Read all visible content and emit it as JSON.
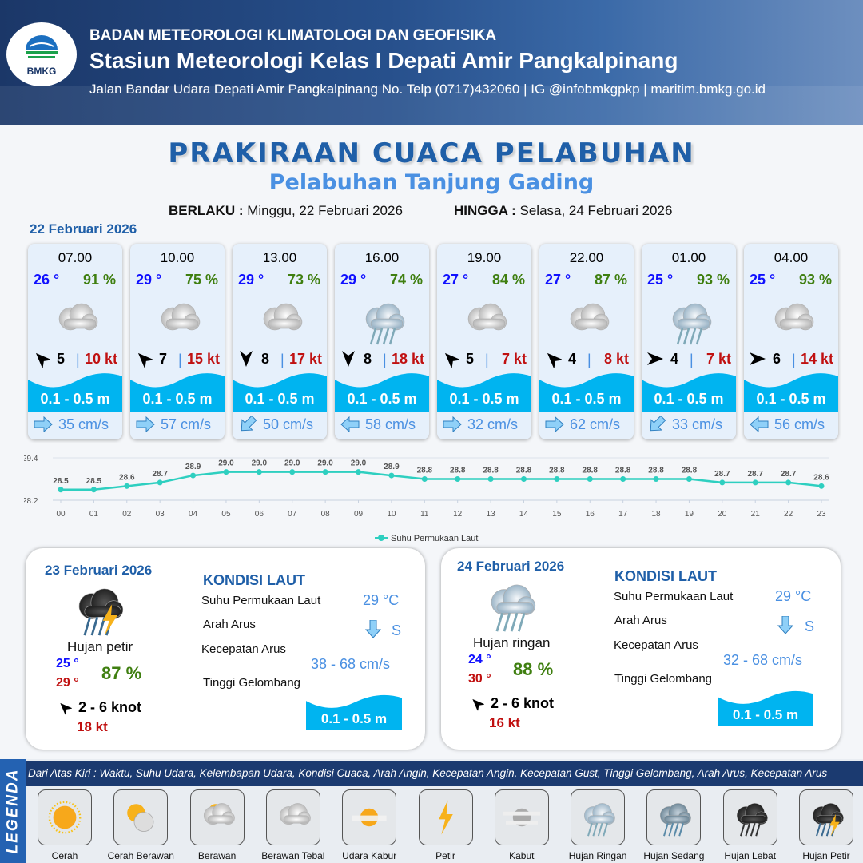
{
  "header": {
    "logo_text": "BMKG",
    "agency": "BADAN METEOROLOGI KLIMATOLOGI DAN GEOFISIKA",
    "station": "Stasiun Meteorologi Kelas I Depati Amir Pangkalpinang",
    "contact": "Jalan Bandar Udara Depati Amir Pangkalpinang No. Telp (0717)432060 | IG @infobmkgpkp | maritim.bmkg.go.id"
  },
  "title": "PRAKIRAAN CUACA PELABUHAN",
  "subtitle": "Pelabuhan Tanjung Gading",
  "validity": {
    "from_label": "BERLAKU :",
    "from_value": "Minggu, 22 Februari 2026",
    "to_label": "HINGGA :",
    "to_value": "Selasa, 24 Februari 2026"
  },
  "day1": {
    "date": "22 Februari 2026",
    "forecasts": [
      {
        "time": "07.00",
        "temp": "26 °",
        "rh": "91 %",
        "weather": "Berawan Tebal",
        "wind_dir": "NW",
        "wind_speed": "5",
        "gust": "10 kt",
        "wave": "0.1 - 0.5 m",
        "current_dir": "E",
        "current_speed": "35 cm/s"
      },
      {
        "time": "10.00",
        "temp": "29 °",
        "rh": "75 %",
        "weather": "Berawan Tebal",
        "wind_dir": "NW",
        "wind_speed": "7",
        "gust": "15 kt",
        "wave": "0.1 - 0.5 m",
        "current_dir": "E",
        "current_speed": "57 cm/s"
      },
      {
        "time": "13.00",
        "temp": "29 °",
        "rh": "73 %",
        "weather": "Berawan Tebal",
        "wind_dir": "S",
        "wind_speed": "8",
        "gust": "17 kt",
        "wave": "0.1 - 0.5 m",
        "current_dir": "SW",
        "current_speed": "50 cm/s"
      },
      {
        "time": "16.00",
        "temp": "29 °",
        "rh": "74 %",
        "weather": "Hujan Ringan",
        "wind_dir": "S",
        "wind_speed": "8",
        "gust": "18 kt",
        "wave": "0.1 - 0.5 m",
        "current_dir": "W",
        "current_speed": "58 cm/s"
      },
      {
        "time": "19.00",
        "temp": "27 °",
        "rh": "84 %",
        "weather": "Berawan Tebal",
        "wind_dir": "NW",
        "wind_speed": "5",
        "gust": "7 kt",
        "wave": "0.1 - 0.5 m",
        "current_dir": "E",
        "current_speed": "32 cm/s"
      },
      {
        "time": "22.00",
        "temp": "27 °",
        "rh": "87 %",
        "weather": "Berawan Tebal",
        "wind_dir": "NW",
        "wind_speed": "4",
        "gust": "8 kt",
        "wave": "0.1 - 0.5 m",
        "current_dir": "E",
        "current_speed": "62 cm/s"
      },
      {
        "time": "01.00",
        "temp": "25 °",
        "rh": "93 %",
        "weather": "Hujan Ringan",
        "wind_dir": "E",
        "wind_speed": "4",
        "gust": "7 kt",
        "wave": "0.1 - 0.5 m",
        "current_dir": "SW",
        "current_speed": "33 cm/s"
      },
      {
        "time": "04.00",
        "temp": "25 °",
        "rh": "93 %",
        "weather": "Berawan Tebal",
        "wind_dir": "E",
        "wind_speed": "6",
        "gust": "14 kt",
        "wave": "0.1 - 0.5 m",
        "current_dir": "W",
        "current_speed": "56 cm/s"
      }
    ]
  },
  "chart_data": {
    "type": "line",
    "x": [
      "00",
      "01",
      "02",
      "03",
      "04",
      "05",
      "06",
      "07",
      "08",
      "09",
      "10",
      "11",
      "12",
      "13",
      "14",
      "15",
      "16",
      "17",
      "18",
      "19",
      "20",
      "21",
      "22",
      "23"
    ],
    "series": [
      {
        "name": "Suhu Permukaan Laut",
        "values": [
          28.5,
          28.5,
          28.6,
          28.7,
          28.9,
          29.0,
          29.0,
          29.0,
          29.0,
          29.0,
          28.9,
          28.8,
          28.8,
          28.8,
          28.8,
          28.8,
          28.8,
          28.8,
          28.8,
          28.8,
          28.7,
          28.7,
          28.7,
          28.6
        ],
        "color": "#2ecfc0"
      }
    ],
    "ylim": [
      28.2,
      29.4
    ],
    "yticks": [
      "29.4",
      "28.2"
    ],
    "legend": "bottom",
    "grid": true
  },
  "panels": [
    {
      "date": "23 Februari 2026",
      "condition": "Hujan petir",
      "weather": "Hujan Petir",
      "tmin": "25 °",
      "tmax": "29 °",
      "rh": "87 %",
      "wind_dir": "NW",
      "wind": "2  - 6 knot",
      "gust": "18 kt",
      "sea_title": "KONDISI LAUT",
      "sst_label": "Suhu Permukaan Laut",
      "sst": "29 °C",
      "cur_dir_label": "Arah Arus",
      "cur_dir": "S",
      "cur_speed_label": "Kecepatan Arus",
      "cur_speed": "38  - 68 cm/s",
      "wave_label": "Tinggi Gelombang",
      "wave": "0.1 - 0.5 m"
    },
    {
      "date": "24 Februari 2026",
      "condition": "Hujan ringan",
      "weather": "Hujan Ringan",
      "tmin": "24 °",
      "tmax": "30 °",
      "rh": "88 %",
      "wind_dir": "NW",
      "wind": "2  - 6 knot",
      "gust": "16 kt",
      "sea_title": "KONDISI LAUT",
      "sst_label": "Suhu Permukaan Laut",
      "sst": "29 °C",
      "cur_dir_label": "Arah Arus",
      "cur_dir": "S",
      "cur_speed_label": "Kecepatan Arus",
      "cur_speed": "32  - 68 cm/s",
      "wave_label": "Tinggi Gelombang",
      "wave": "0.1 - 0.5 m"
    }
  ],
  "legend": {
    "title": "LEGENDA",
    "description": "Dari Atas Kiri : Waktu, Suhu Udara, Kelembapan Udara, Kondisi Cuaca, Arah Angin, Kecepatan Angin, Kecepatan Gust, Tinggi Gelombang, Arah Arus, Kecepatan Arus",
    "items": [
      "Cerah",
      "Cerah Berawan",
      "Berawan",
      "Berawan Tebal",
      "Udara Kabur",
      "Petir",
      "Kabut",
      "Hujan Ringan",
      "Hujan Sedang",
      "Hujan Lebat",
      "Hujan Petir"
    ]
  },
  "colors": {
    "temp": "#1010ff",
    "rh": "#3f7f10",
    "gust": "#c01010",
    "wave": "#00b4f0",
    "accent": "#1f5fa8",
    "current": "#4a90e2"
  }
}
